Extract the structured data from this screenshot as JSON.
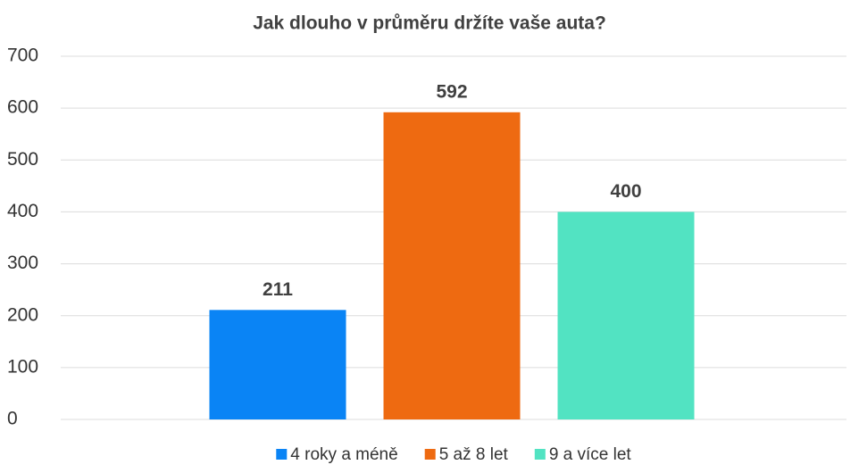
{
  "chart_data": {
    "type": "bar",
    "title": "Jak dlouho v průměru držíte vaše auta?",
    "categories": [
      null
    ],
    "series": [
      {
        "name": "4 roky a méně",
        "color": "#0a84f5",
        "values": [
          211
        ]
      },
      {
        "name": "5 až 8 let",
        "color": "#ee6a11",
        "values": [
          592
        ]
      },
      {
        "name": "9 a více let",
        "color": "#52e3c2",
        "values": [
          400
        ]
      }
    ],
    "ylim": [
      0,
      700
    ],
    "yticks": [
      0,
      100,
      200,
      300,
      400,
      500,
      600,
      700
    ],
    "grid": true,
    "legend": "bottom"
  }
}
